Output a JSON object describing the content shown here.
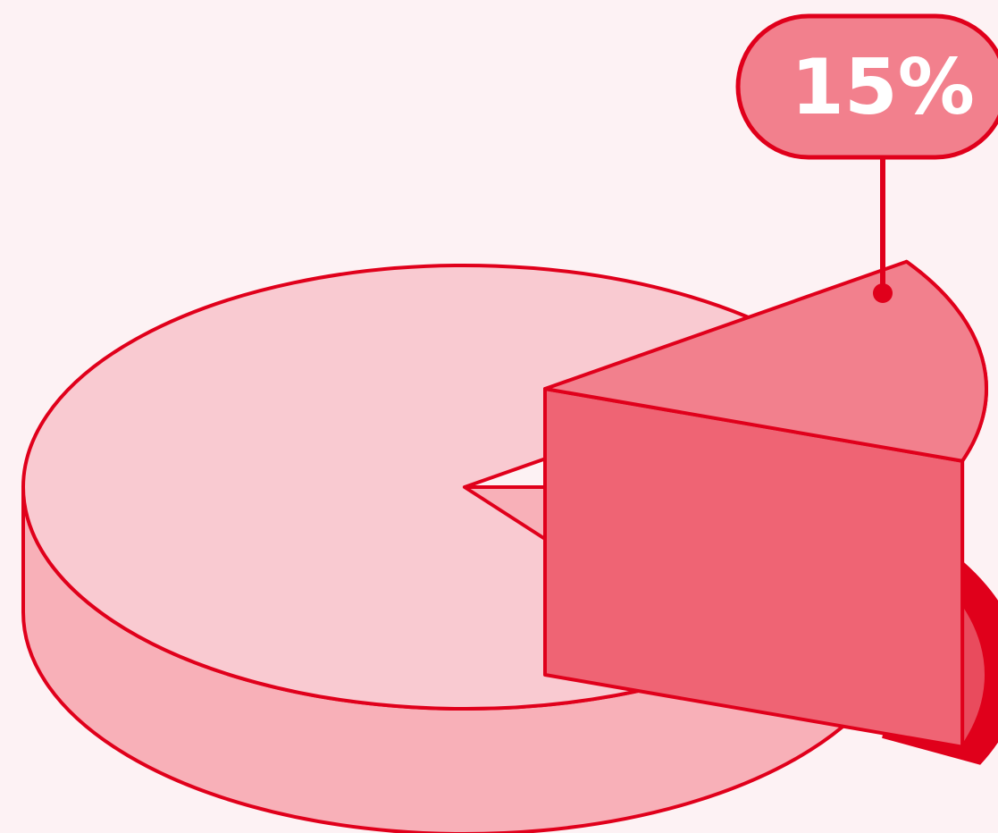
{
  "chart_data": {
    "type": "pie",
    "values": [
      85,
      15
    ],
    "highlighted_slice_index": 1,
    "highlight_label": "15%",
    "colors": {
      "background": "#fdf2f4",
      "outline": "#e0001b",
      "base_top": "#f9cad1",
      "base_side": "#f8b0b8",
      "slice_top": "#f2808d",
      "slice_cut": "#ef6474",
      "slice_outer": "#e94b5d",
      "shadow": "#e0001b",
      "label_fill": "#f2808d",
      "label_text": "#ffffff"
    }
  }
}
